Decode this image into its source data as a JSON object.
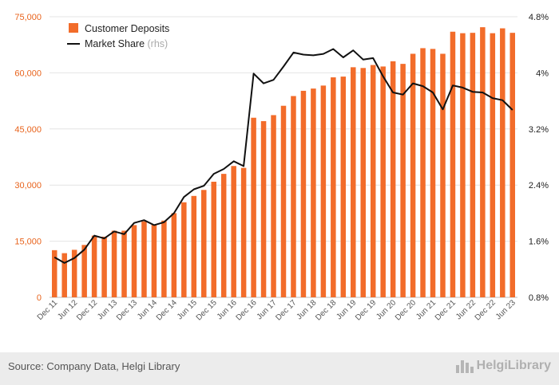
{
  "chart_data": {
    "type": "bar+line",
    "categories": [
      "Dec 11",
      "Mar 12",
      "Jun 12",
      "Sep 12",
      "Dec 12",
      "Mar 13",
      "Jun 13",
      "Sep 13",
      "Dec 13",
      "Mar 14",
      "Jun 14",
      "Sep 14",
      "Dec 14",
      "Mar 15",
      "Jun 15",
      "Sep 15",
      "Dec 15",
      "Mar 16",
      "Jun 16",
      "Sep 16",
      "Dec 16",
      "Mar 17",
      "Jun 17",
      "Sep 17",
      "Dec 17",
      "Mar 18",
      "Jun 18",
      "Sep 18",
      "Dec 18",
      "Mar 19",
      "Jun 19",
      "Sep 19",
      "Dec 19",
      "Mar 20",
      "Jun 20",
      "Sep 20",
      "Dec 20",
      "Mar 21",
      "Jun 21",
      "Sep 21",
      "Dec 21",
      "Mar 22",
      "Jun 22",
      "Sep 22",
      "Dec 22",
      "Mar 23",
      "Jun 23"
    ],
    "x_tick_labels": [
      "Dec 11",
      "Jun 12",
      "Dec 12",
      "Jun 13",
      "Dec 13",
      "Jun 14",
      "Dec 14",
      "Jun 15",
      "Dec 15",
      "Jun 16",
      "Dec 16",
      "Jun 17",
      "Dec 17",
      "Jun 18",
      "Dec 18",
      "Jun 19",
      "Dec 19",
      "Jun 20",
      "Dec 20",
      "Jun 21",
      "Dec 21",
      "Jun 22",
      "Dec 22",
      "Jun 23"
    ],
    "series": [
      {
        "name": "Customer Deposits",
        "kind": "bar",
        "axis": "left",
        "color": "#f26c2a",
        "values": [
          12600,
          11800,
          12700,
          14000,
          16500,
          16200,
          17800,
          17800,
          19300,
          20300,
          19500,
          20500,
          22500,
          25400,
          27100,
          28700,
          30900,
          33000,
          35100,
          34600,
          48000,
          47100,
          48700,
          51200,
          53800,
          55200,
          55800,
          56600,
          58800,
          59000,
          61500,
          61300,
          62100,
          61700,
          63100,
          62400,
          65100,
          66600,
          66400,
          65100,
          71000,
          70600,
          70700,
          72200,
          70600,
          71900,
          70700
        ]
      },
      {
        "name": "Market Share",
        "label_suffix": "(rhs)",
        "kind": "line",
        "axis": "right",
        "color": "#111111",
        "values": [
          1.37,
          1.29,
          1.36,
          1.48,
          1.68,
          1.64,
          1.74,
          1.7,
          1.86,
          1.9,
          1.83,
          1.87,
          2.0,
          2.23,
          2.34,
          2.39,
          2.56,
          2.63,
          2.74,
          2.67,
          3.99,
          3.85,
          3.9,
          4.09,
          4.29,
          4.26,
          4.25,
          4.27,
          4.34,
          4.22,
          4.32,
          4.19,
          4.21,
          3.95,
          3.72,
          3.69,
          3.85,
          3.81,
          3.72,
          3.48,
          3.82,
          3.79,
          3.73,
          3.72,
          3.64,
          3.61,
          3.47
        ]
      }
    ],
    "y_left": {
      "ticks": [
        "0",
        "15,000",
        "30,000",
        "45,000",
        "60,000",
        "75,000"
      ],
      "ylim": [
        0,
        75000
      ]
    },
    "y_right": {
      "ticks": [
        "0.8%",
        "1.6%",
        "2.4%",
        "3.2%",
        "4%",
        "4.8%"
      ],
      "ylim": [
        0.8,
        4.8
      ]
    },
    "legend_position": "top-left",
    "grid": "horizontal"
  },
  "footer": {
    "source": "Source: Company Data, Helgi Library",
    "logo_text": "HelgiLibrary"
  }
}
